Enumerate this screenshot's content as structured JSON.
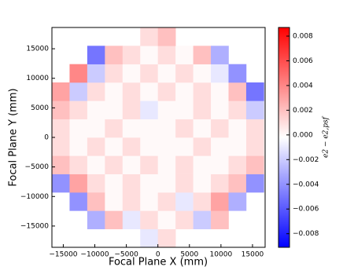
{
  "chart_data": {
    "type": "heatmap",
    "xlabel": "Focal Plane X (mm)",
    "ylabel": "Focal Plane Y (mm)",
    "colorbar_label": "e2 − e2,psf",
    "colormap": "bwr",
    "xlim": [
      -16800,
      17000
    ],
    "ylim": [
      -18600,
      18600
    ],
    "clim": [
      -0.0091,
      0.0087
    ],
    "xticks": [
      {
        "value": -15000,
        "label": "−15000"
      },
      {
        "value": -10000,
        "label": "−10000"
      },
      {
        "value": -5000,
        "label": "−5000"
      },
      0,
      5000,
      10000,
      15000
    ],
    "yticks": [
      {
        "value": -15000,
        "label": "−15000"
      },
      {
        "value": -10000,
        "label": "−10000"
      },
      {
        "value": -5000,
        "label": "−5000"
      },
      0,
      5000,
      10000,
      15000
    ],
    "cticks": [
      {
        "value": -0.008,
        "label": "−0.008"
      },
      {
        "value": -0.006,
        "label": "−0.006"
      },
      {
        "value": -0.004,
        "label": "−0.004"
      },
      {
        "value": -0.002,
        "label": "−0.002"
      },
      {
        "value": 0,
        "label": "0.000"
      },
      0.002,
      0.004,
      0.006,
      0.008
    ],
    "xbins": [
      -16800,
      -14000,
      -11200,
      -8400,
      -5600,
      -2800,
      0,
      2800,
      5600,
      8400,
      11200,
      14000,
      16800
    ],
    "ybins": [
      -18600,
      -15500,
      -12400,
      -9300,
      -6200,
      -3100,
      0,
      3100,
      6200,
      9300,
      12400,
      15500,
      18600
    ],
    "values": [
      [
        null,
        null,
        null,
        null,
        null,
        -0.001,
        0.001,
        null,
        null,
        null,
        null,
        null
      ],
      [
        null,
        null,
        -0.003,
        0.002,
        -0.001,
        0.001,
        0,
        0.001,
        -0.002,
        0.002,
        null,
        null
      ],
      [
        null,
        -0.004,
        0.002,
        0,
        0.001,
        0,
        0.001,
        -0.001,
        0.001,
        0.003,
        -0.003,
        null
      ],
      [
        -0.004,
        0.003,
        0.001,
        0,
        0.001,
        0,
        0,
        0.001,
        0,
        0.001,
        0.002,
        -0.004
      ],
      [
        0.002,
        0.001,
        0,
        0.001,
        0,
        0.001,
        0,
        0.001,
        0,
        0,
        0.001,
        0.002
      ],
      [
        0.001,
        0,
        0.001,
        0,
        0.001,
        0,
        0,
        0,
        0.001,
        0,
        0,
        0.001
      ],
      [
        0.001,
        0,
        0,
        0.001,
        0,
        0,
        0,
        0.001,
        0,
        0.001,
        0,
        0.001
      ],
      [
        0.002,
        0.001,
        0,
        0,
        0.001,
        -0.001,
        0,
        0,
        0.001,
        0,
        0.001,
        -0.002
      ],
      [
        0.003,
        -0.002,
        0.001,
        0,
        0.001,
        0,
        0.001,
        0,
        0.001,
        0,
        0.002,
        -0.005
      ],
      [
        null,
        0.004,
        -0.002,
        0.001,
        0,
        0.001,
        0,
        0.001,
        0,
        -0.001,
        -0.004,
        null
      ],
      [
        null,
        null,
        -0.005,
        0.002,
        0.001,
        0,
        0.001,
        0,
        0.002,
        -0.003,
        null,
        null
      ],
      [
        null,
        null,
        null,
        null,
        null,
        0.001,
        0.002,
        null,
        null,
        null,
        null,
        null
      ]
    ]
  }
}
